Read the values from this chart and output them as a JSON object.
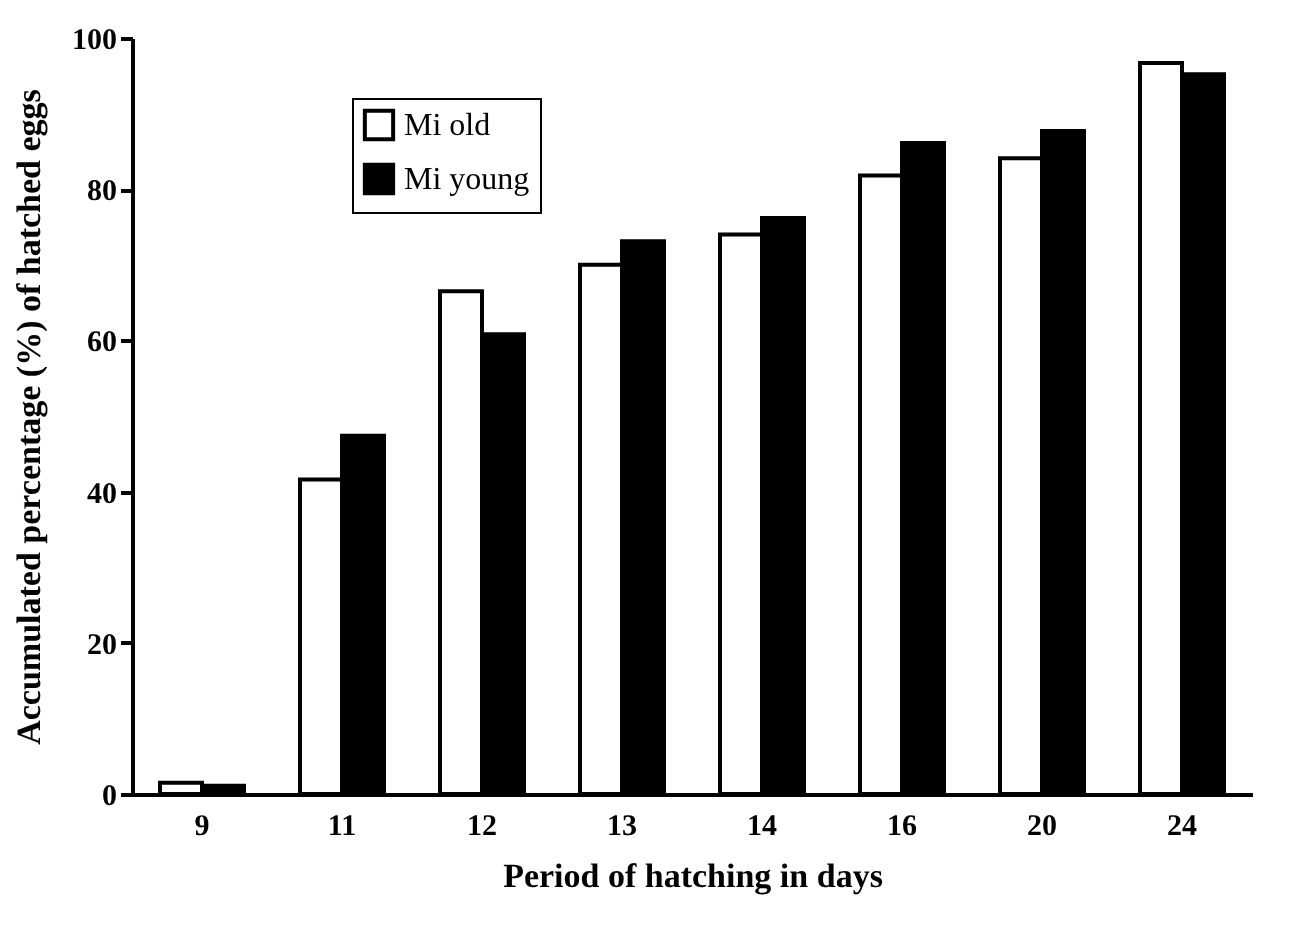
{
  "chart_data": {
    "type": "bar",
    "xlabel": "Period of hatching in days",
    "ylabel": "Accumulated percentage (%) of hatched eggs",
    "categories": [
      "9",
      "11",
      "12",
      "13",
      "14",
      "16",
      "20",
      "24"
    ],
    "series": [
      {
        "name": "Mi old",
        "color": "#ffffff",
        "values": [
          1.5,
          41.6,
          66.5,
          70.0,
          74.0,
          81.8,
          84.1,
          96.7
        ]
      },
      {
        "name": "Mi young",
        "color": "#000000",
        "values": [
          1.1,
          47.4,
          60.8,
          73.1,
          76.2,
          86.1,
          87.7,
          95.2
        ]
      }
    ],
    "ylim": [
      0,
      100
    ],
    "yticks": [
      0,
      20,
      40,
      60,
      80,
      100
    ],
    "grid": false,
    "legend": "top left"
  }
}
